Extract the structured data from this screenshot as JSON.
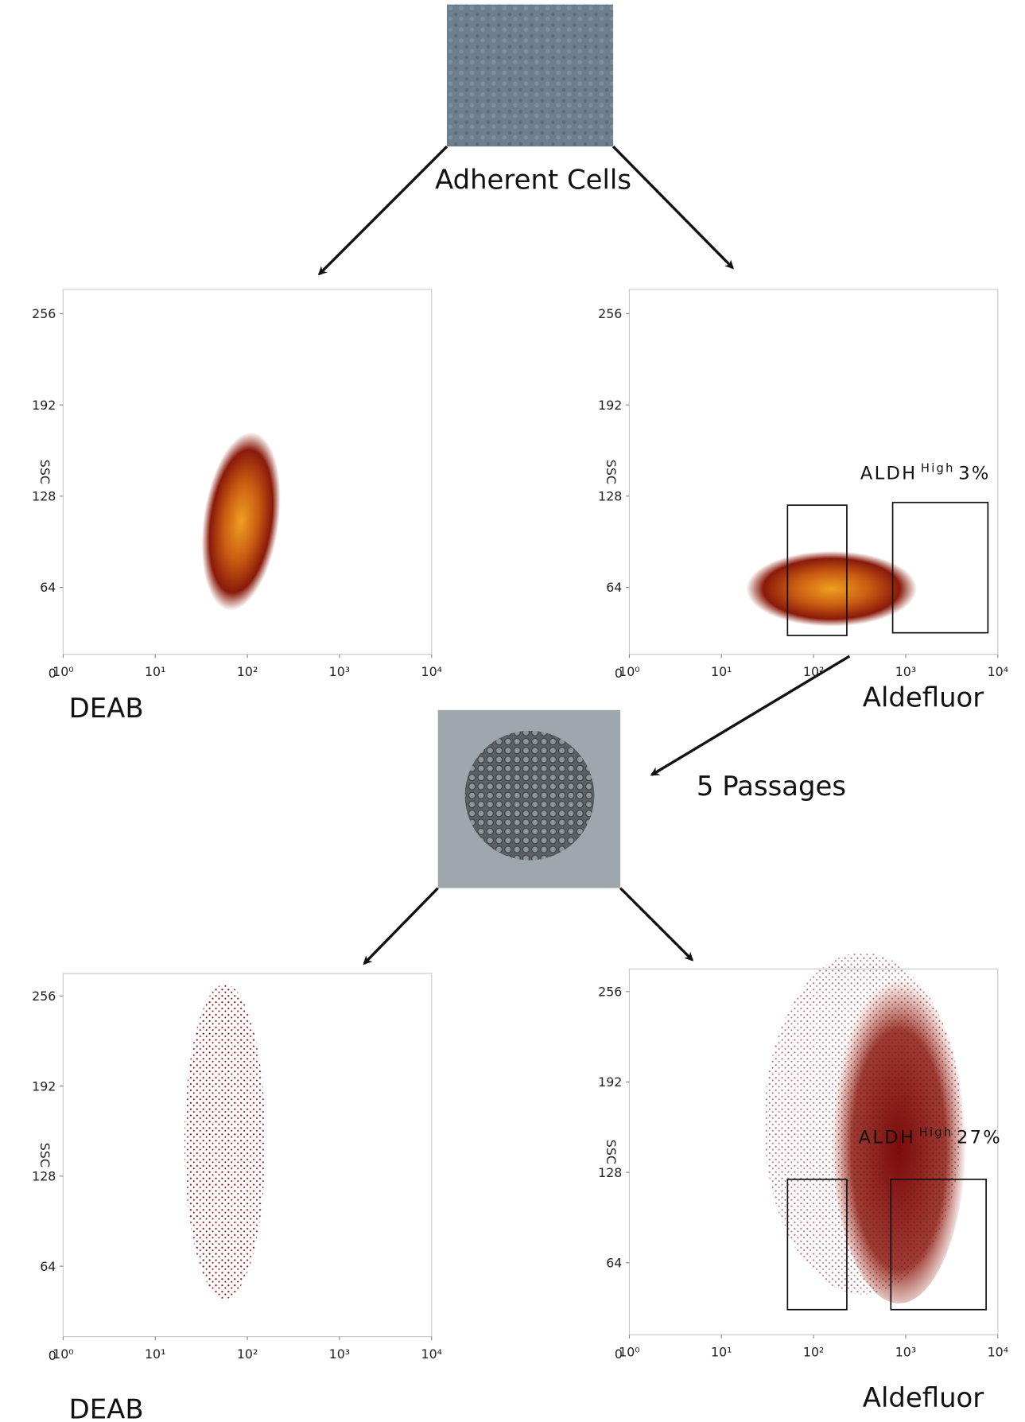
{
  "top_image_label": "Adherent Cells",
  "transition_label": "5 Passages",
  "plots": [
    {
      "condition": "DEAB",
      "y_axis_label": "SSC",
      "origin_label": "0",
      "x_scale": "log",
      "xlim": [
        0,
        4
      ],
      "xticks": [
        {
          "value": 0,
          "label": "10⁰"
        },
        {
          "value": 1,
          "label": "10¹"
        },
        {
          "value": 2,
          "label": "10²"
        },
        {
          "value": 3,
          "label": "10³"
        },
        {
          "value": 4,
          "label": "10⁴"
        }
      ],
      "ylim": [
        17,
        273
      ],
      "yticks": [
        64,
        128,
        192,
        256
      ]
    },
    {
      "condition": "Aldefluor",
      "y_axis_label": "SSC",
      "origin_label": "0",
      "x_scale": "log",
      "xlim": [
        0,
        4
      ],
      "xticks": [
        {
          "value": 0,
          "label": "10⁰"
        },
        {
          "value": 1,
          "label": "10¹"
        },
        {
          "value": 2,
          "label": "10²"
        },
        {
          "value": 3,
          "label": "10³"
        },
        {
          "value": 4,
          "label": "10⁴"
        }
      ],
      "ylim": [
        17,
        273
      ],
      "yticks": [
        64,
        128,
        192,
        256
      ],
      "gate_label": {
        "name": "ALDH",
        "superscript": "High",
        "percent": "3%"
      }
    },
    {
      "condition": "DEAB",
      "y_axis_label": "SSC",
      "origin_label": "0",
      "x_scale": "log",
      "xlim": [
        0,
        4
      ],
      "xticks": [
        {
          "value": 0,
          "label": "10⁰"
        },
        {
          "value": 1,
          "label": "10¹"
        },
        {
          "value": 2,
          "label": "10²"
        },
        {
          "value": 3,
          "label": "10³"
        },
        {
          "value": 4,
          "label": "10⁴"
        }
      ],
      "ylim": [
        14,
        272
      ],
      "yticks": [
        64,
        128,
        192,
        256
      ]
    },
    {
      "condition": "Aldefluor",
      "y_axis_label": "SSC",
      "origin_label": "0",
      "x_scale": "log",
      "xlim": [
        0,
        4
      ],
      "xticks": [
        {
          "value": 0,
          "label": "10⁰"
        },
        {
          "value": 1,
          "label": "10¹"
        },
        {
          "value": 2,
          "label": "10²"
        },
        {
          "value": 3,
          "label": "10³"
        },
        {
          "value": 4,
          "label": "10⁴"
        }
      ],
      "ylim": [
        13,
        272
      ],
      "yticks": [
        64,
        128,
        192,
        256
      ],
      "gate_label": {
        "name": "ALDH",
        "superscript": "High",
        "percent": "27%"
      }
    }
  ]
}
